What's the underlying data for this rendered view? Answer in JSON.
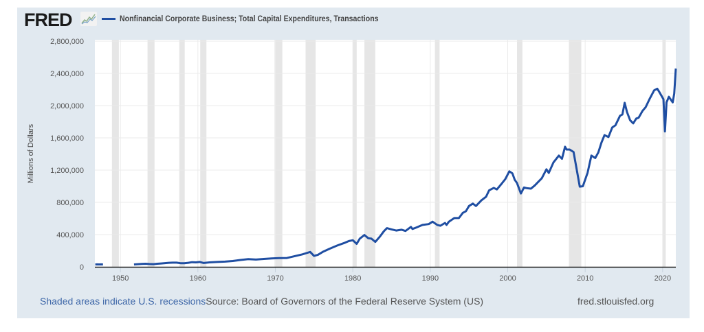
{
  "header": {
    "logo_text": "FRED",
    "logo_icon": "chart-line-icon",
    "legend_label": "Nonfinancial Corporate Business; Total Capital Expenditures, Transactions",
    "series_color": "#1f4ea2"
  },
  "footer": {
    "recession_note": "Shaded areas indicate U.S. recessions",
    "source": "Source: Board of Governors of the Federal Reserve System (US)",
    "site": "fred.stlouisfed.org"
  },
  "colors": {
    "panel_background": "#e1e9f0",
    "plot_background": "#ffffff",
    "recession_band": "#e6e6e6",
    "gridline": "#ebebeb",
    "series": "#1f4ea2"
  },
  "chart_data": {
    "type": "line",
    "title": "Nonfinancial Corporate Business; Total Capital Expenditures, Transactions",
    "xlabel": "",
    "ylabel": "Millions of Dollars",
    "xlim": [
      1946.7,
      2021.7
    ],
    "ylim": [
      0,
      2800000
    ],
    "grid": true,
    "legend_position": "top-left",
    "x_ticks": [
      1950,
      1960,
      1970,
      1980,
      1990,
      2000,
      2010,
      2020
    ],
    "x_tick_labels": [
      "1950",
      "1960",
      "1970",
      "1980",
      "1990",
      "2000",
      "2010",
      "2020"
    ],
    "y_ticks": [
      0,
      400000,
      800000,
      1200000,
      1600000,
      2000000,
      2400000,
      2800000
    ],
    "y_tick_labels": [
      "0",
      "400,000",
      "800,000",
      "1,200,000",
      "1,600,000",
      "2,000,000",
      "2,400,000",
      "2,800,000"
    ],
    "recessions": [
      [
        1948.9,
        1949.8
      ],
      [
        1953.5,
        1954.4
      ],
      [
        1957.6,
        1958.3
      ],
      [
        1960.3,
        1961.1
      ],
      [
        1969.9,
        1970.9
      ],
      [
        1973.9,
        1975.2
      ],
      [
        1980.0,
        1980.5
      ],
      [
        1981.5,
        1982.9
      ],
      [
        1990.6,
        1991.2
      ],
      [
        2001.2,
        2001.9
      ],
      [
        2007.9,
        2009.5
      ],
      [
        2020.0,
        2020.4
      ]
    ],
    "series": [
      {
        "name": "Nonfinancial Corporate Business; Total Capital Expenditures, Transactions",
        "segments": [
          {
            "x": [
              1946.75,
              1947.0,
              1947.25,
              1947.5,
              1947.75
            ],
            "y": [
              30000,
              31000,
              30000,
              31000,
              30000
            ]
          },
          {
            "x": [
              1951.75,
              1952.25,
              1952.75,
              1953.25,
              1953.75,
              1954.25,
              1954.75,
              1955.25,
              1955.75,
              1956.25,
              1956.75,
              1957.25,
              1957.75,
              1958.25,
              1958.75,
              1959.25,
              1959.75,
              1960.25,
              1960.75,
              1961.5,
              1962.5,
              1963.5,
              1964.5,
              1965.5,
              1966.5,
              1967.5,
              1968.5,
              1969.5,
              1970.5,
              1971.5,
              1972.4,
              1973.5,
              1974.0,
              1974.5,
              1974.75,
              1975.0,
              1975.5,
              1976.2,
              1977.0,
              1978.0,
              1979.0,
              1979.5,
              1980.0,
              1980.5,
              1980.9,
              1981.5,
              1982.0,
              1982.4,
              1982.9,
              1983.5,
              1984.0,
              1984.4,
              1985.0,
              1985.6,
              1986.3,
              1986.8,
              1987.5,
              1987.7,
              1988.0,
              1989.0,
              1989.8,
              1990.3,
              1990.9,
              1991.3,
              1991.9,
              1992.1,
              1992.4,
              1993.1,
              1993.7,
              1994.2,
              1994.6,
              1995.0,
              1995.5,
              1995.9,
              1996.6,
              1997.2,
              1997.6,
              1998.2,
              1998.6,
              1999.2,
              1999.7,
              2000.2,
              2000.6,
              2000.9,
              2001.2,
              2001.7,
              2002.1,
              2002.5,
              2003.0,
              2003.5,
              2003.8,
              2004.4,
              2005.0,
              2005.3,
              2005.9,
              2006.6,
              2007.0,
              2007.4,
              2007.6,
              2008.0,
              2008.5,
              2008.9,
              2009.3,
              2009.7,
              2010.3,
              2010.8,
              2011.3,
              2011.7,
              2012.1,
              2012.5,
              2013.0,
              2013.5,
              2013.9,
              2014.5,
              2014.8,
              2015.1,
              2015.4,
              2015.8,
              2016.2,
              2016.6,
              2016.9,
              2017.4,
              2017.8,
              2018.3,
              2018.9,
              2019.3,
              2019.6,
              2020.1,
              2020.3,
              2020.5,
              2020.8,
              2021.3,
              2021.5,
              2021.7
            ],
            "y": [
              30000,
              33000,
              36000,
              38000,
              35000,
              33000,
              38000,
              42000,
              46000,
              50000,
              52000,
              52000,
              45000,
              44000,
              50000,
              58000,
              55000,
              60000,
              48000,
              55000,
              60000,
              65000,
              72000,
              85000,
              95000,
              90000,
              98000,
              105000,
              108000,
              110000,
              130000,
              155000,
              170000,
              185000,
              160000,
              135000,
              150000,
              190000,
              225000,
              265000,
              300000,
              320000,
              330000,
              285000,
              350000,
              395000,
              355000,
              350000,
              310000,
              375000,
              440000,
              480000,
              465000,
              450000,
              460000,
              445000,
              495000,
              470000,
              480000,
              520000,
              530000,
              560000,
              520000,
              510000,
              545000,
              520000,
              560000,
              605000,
              605000,
              670000,
              690000,
              755000,
              785000,
              755000,
              825000,
              870000,
              950000,
              980000,
              960000,
              1030000,
              1090000,
              1185000,
              1160000,
              1080000,
              1040000,
              910000,
              985000,
              975000,
              970000,
              1010000,
              1040000,
              1100000,
              1210000,
              1165000,
              1295000,
              1380000,
              1340000,
              1490000,
              1455000,
              1455000,
              1425000,
              1210000,
              995000,
              1000000,
              1165000,
              1380000,
              1350000,
              1420000,
              1540000,
              1635000,
              1610000,
              1730000,
              1755000,
              1875000,
              1890000,
              2035000,
              1920000,
              1820000,
              1780000,
              1840000,
              1850000,
              1935000,
              1980000,
              2080000,
              2190000,
              2210000,
              2165000,
              2080000,
              1680000,
              2040000,
              2110000,
              2040000,
              2150000,
              2460000
            ]
          }
        ]
      }
    ]
  }
}
